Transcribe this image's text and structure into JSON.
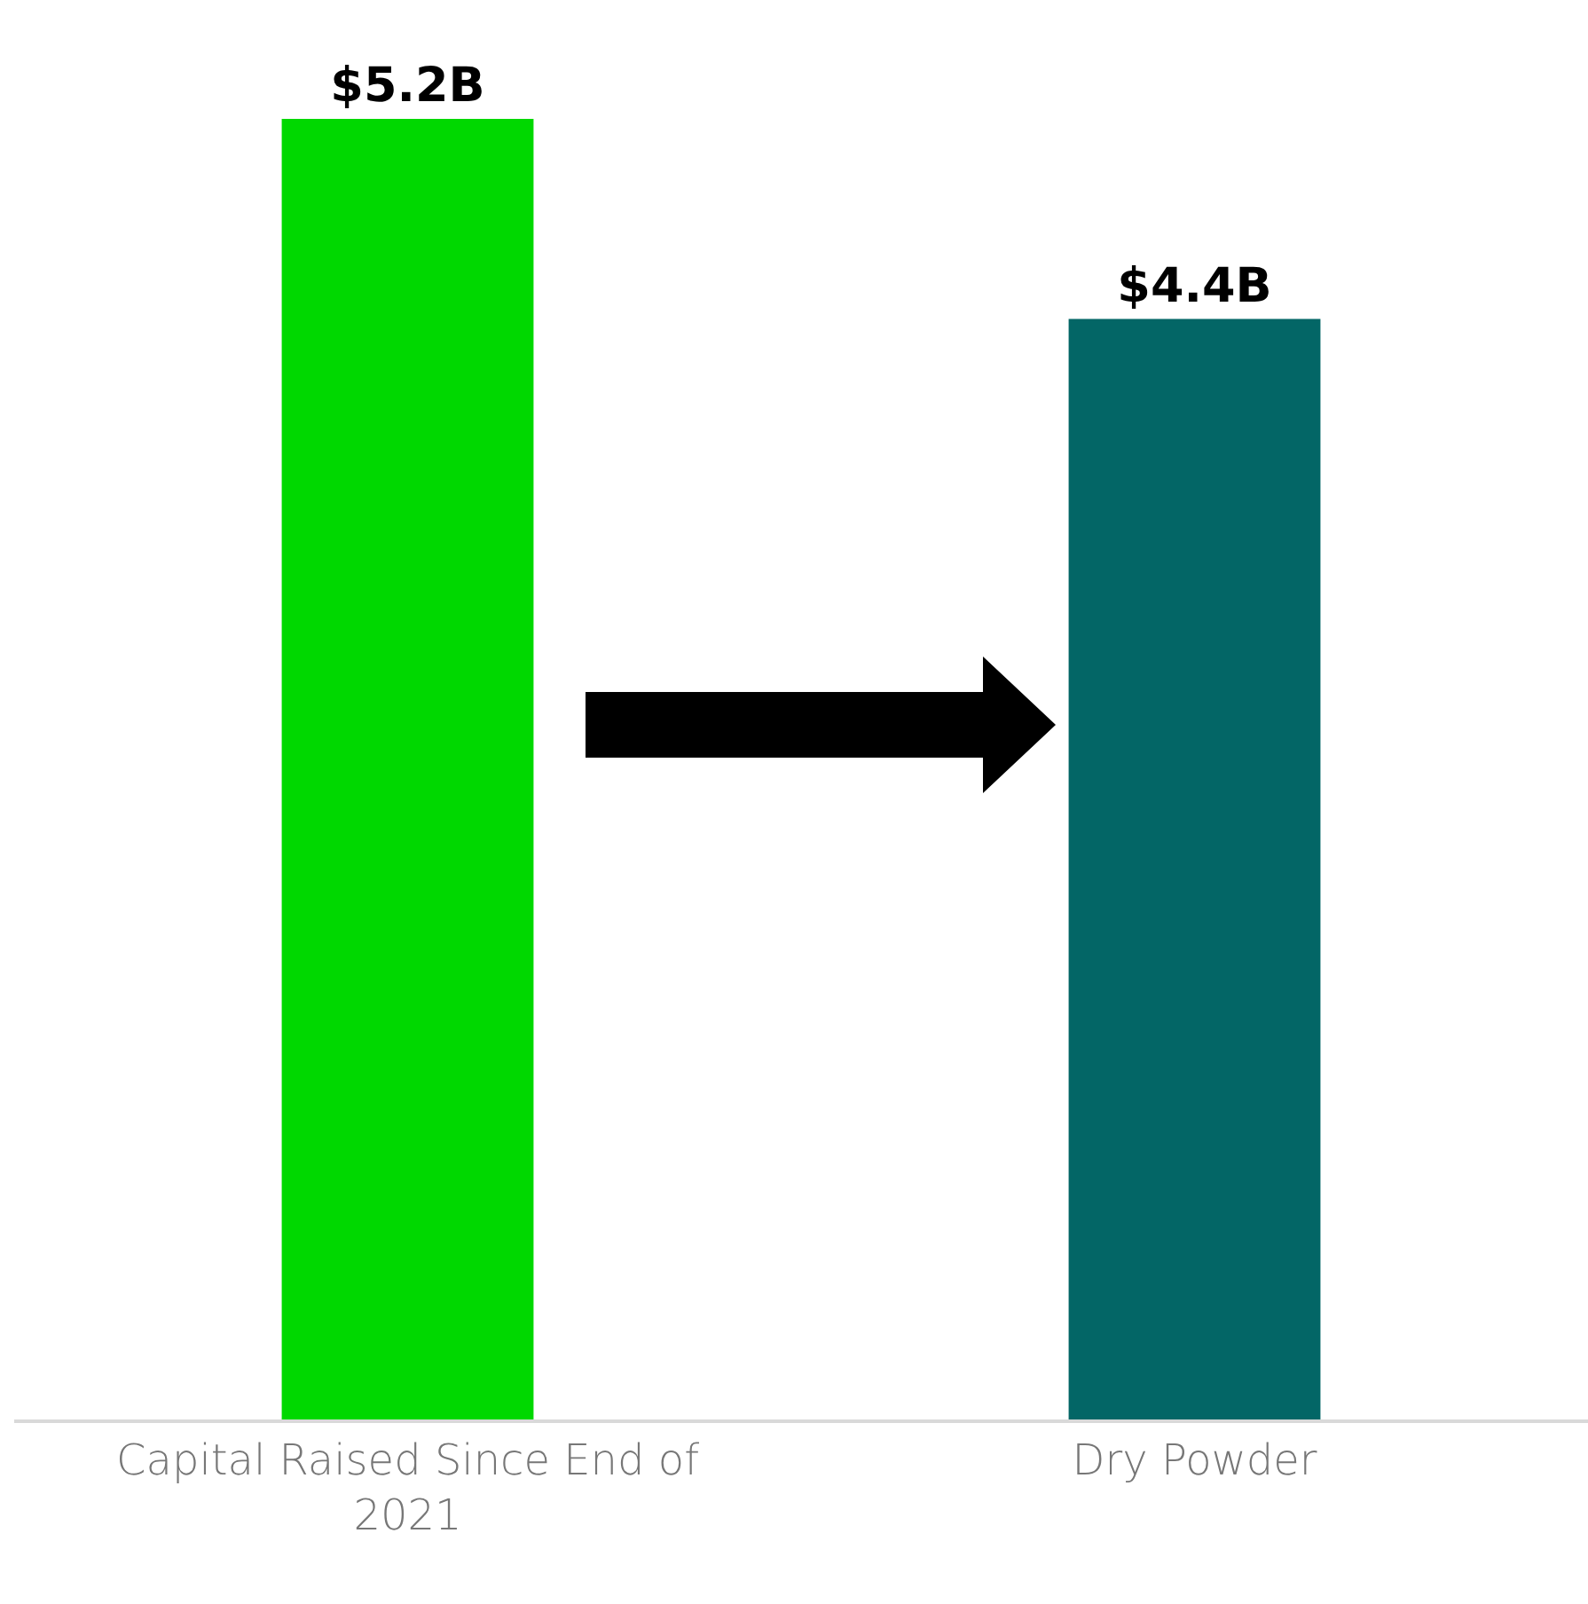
{
  "chart_data": {
    "type": "bar",
    "categories": [
      "Capital Raised Since End of 2021",
      "Dry Powder"
    ],
    "values": [
      5.2,
      4.4
    ],
    "colors": [
      "#00d800",
      "#036666"
    ],
    "value_labels": [
      "$5.2B",
      "$4.4B"
    ],
    "grid": false,
    "legend": false
  }
}
